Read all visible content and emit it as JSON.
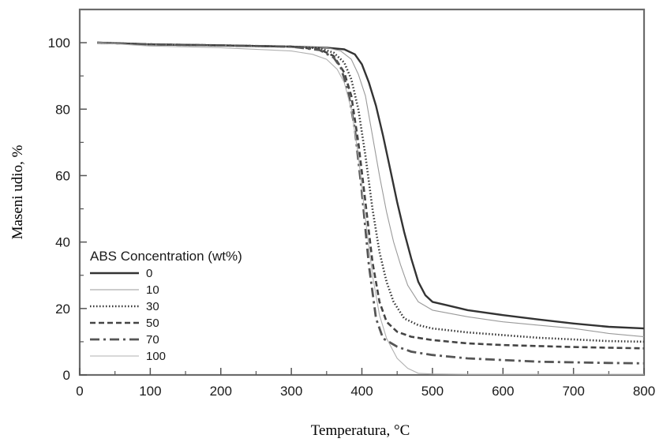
{
  "chart_data": {
    "type": "line",
    "xlabel": "Temperatura, °C",
    "ylabel": "Maseni udio, %",
    "xlim": [
      0,
      800
    ],
    "ylim": [
      0,
      110
    ],
    "xticks": [
      0,
      100,
      200,
      300,
      400,
      500,
      600,
      700,
      800
    ],
    "yticks": [
      0,
      20,
      40,
      60,
      80,
      100
    ],
    "grid": false,
    "legend": {
      "title": "ABS Concentration (wt%)",
      "placement": "bottom-left"
    },
    "series": [
      {
        "name": "0",
        "color": "#333333",
        "style": "solid-thick",
        "x": [
          25,
          100,
          200,
          300,
          350,
          375,
          390,
          400,
          410,
          420,
          430,
          440,
          450,
          460,
          470,
          480,
          490,
          500,
          520,
          550,
          600,
          650,
          700,
          750,
          800
        ],
        "y": [
          100,
          99.5,
          99.2,
          98.8,
          98.5,
          98,
          96.5,
          93.5,
          88,
          81,
          72,
          62,
          52,
          43,
          35,
          28,
          24,
          22,
          21,
          19.5,
          18,
          16.7,
          15.5,
          14.5,
          14
        ]
      },
      {
        "name": "10",
        "color": "#9a9a9a",
        "style": "solid-thin",
        "x": [
          25,
          100,
          200,
          300,
          350,
          370,
          385,
          395,
          405,
          415,
          425,
          435,
          445,
          455,
          465,
          480,
          500,
          550,
          600,
          650,
          700,
          750,
          800
        ],
        "y": [
          100,
          99.5,
          99.2,
          98.8,
          98.5,
          97.5,
          95,
          90.5,
          84,
          72,
          60,
          49,
          40,
          33,
          27,
          22,
          19.5,
          17.5,
          16,
          15,
          14,
          12.5,
          11.5
        ]
      },
      {
        "name": "30",
        "color": "#333333",
        "style": "dotted",
        "x": [
          25,
          100,
          200,
          300,
          340,
          360,
          375,
          385,
          395,
          405,
          415,
          425,
          435,
          445,
          460,
          480,
          500,
          550,
          600,
          650,
          700,
          750,
          800
        ],
        "y": [
          100,
          99.5,
          99.2,
          98.8,
          98.3,
          97,
          94,
          89,
          80,
          66,
          50,
          37,
          28,
          22,
          17,
          15,
          14,
          12.8,
          12,
          11.2,
          10.7,
          10.2,
          10
        ]
      },
      {
        "name": "50",
        "color": "#444444",
        "style": "dashed",
        "x": [
          25,
          100,
          200,
          300,
          340,
          360,
          375,
          385,
          395,
          405,
          415,
          425,
          435,
          450,
          470,
          500,
          550,
          600,
          650,
          700,
          750,
          800
        ],
        "y": [
          100,
          99.5,
          99.2,
          98.8,
          98,
          96,
          91,
          84,
          70,
          52,
          34,
          22,
          16,
          13,
          11.5,
          10.5,
          9.5,
          9,
          8.7,
          8.4,
          8.2,
          8
        ]
      },
      {
        "name": "70",
        "color": "#555555",
        "style": "dashdot",
        "x": [
          25,
          100,
          200,
          300,
          340,
          360,
          370,
          380,
          390,
          400,
          410,
          420,
          430,
          450,
          470,
          500,
          550,
          600,
          650,
          700,
          750,
          800
        ],
        "y": [
          100,
          99.5,
          99.2,
          98.8,
          97.8,
          95.5,
          92.5,
          86,
          74,
          55,
          33,
          17,
          11,
          8.5,
          7,
          6,
          5,
          4.5,
          4,
          3.8,
          3.6,
          3.5
        ]
      },
      {
        "name": "100",
        "color": "#b0b0b0",
        "style": "solid-thin",
        "x": [
          25,
          100,
          200,
          300,
          330,
          350,
          365,
          375,
          385,
          395,
          405,
          415,
          425,
          435,
          450,
          465,
          480,
          500,
          550,
          600,
          700,
          800
        ],
        "y": [
          100,
          99,
          98.5,
          97.5,
          96.5,
          95,
          92,
          88,
          80,
          66,
          47,
          30,
          18,
          11,
          5,
          2,
          0.5,
          0.3,
          0.2,
          0.2,
          0.2,
          0.2
        ]
      }
    ]
  }
}
